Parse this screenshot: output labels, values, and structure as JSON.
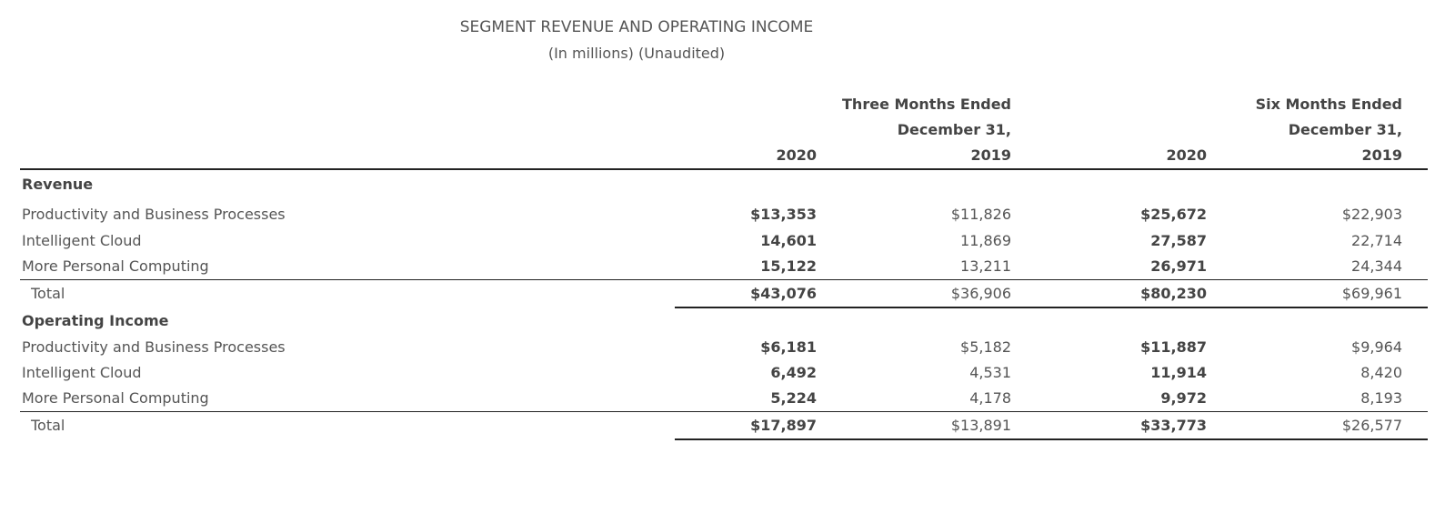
{
  "title": "SEGMENT REVENUE AND OPERATING INCOME",
  "subtitle": "(In millions) (Unaudited)",
  "headers": {
    "three_months": [
      "Three Months Ended",
      "December 31,"
    ],
    "six_months": [
      "Six Months Ended",
      "December 31,"
    ],
    "years": [
      "2020",
      "2019",
      "2020",
      "2019"
    ]
  },
  "revenue": {
    "label": "Revenue",
    "rows": [
      {
        "label": "Productivity and Business Processes",
        "values": [
          "$13,353",
          "$11,826",
          "$25,672",
          "$22,903"
        ]
      },
      {
        "label": "Intelligent Cloud",
        "values": [
          "14,601",
          "11,869",
          "27,587",
          "22,714"
        ]
      },
      {
        "label": "More Personal Computing",
        "values": [
          "15,122",
          "13,211",
          "26,971",
          "24,344"
        ]
      }
    ],
    "total": {
      "label": "Total",
      "values": [
        "$43,076",
        "$36,906",
        "$80,230",
        "$69,961"
      ]
    }
  },
  "operating_income": {
    "label": "Operating Income",
    "rows": [
      {
        "label": "Productivity and Business Processes",
        "values": [
          "$6,181",
          "$5,182",
          "$11,887",
          "$9,964"
        ]
      },
      {
        "label": "Intelligent Cloud",
        "values": [
          "6,492",
          "4,531",
          "11,914",
          "8,420"
        ]
      },
      {
        "label": "More Personal Computing",
        "values": [
          "5,224",
          "4,178",
          "9,972",
          "8,193"
        ]
      }
    ],
    "total": {
      "label": "Total",
      "values": [
        "$17,897",
        "$13,891",
        "$33,773",
        "$26,577"
      ]
    }
  }
}
